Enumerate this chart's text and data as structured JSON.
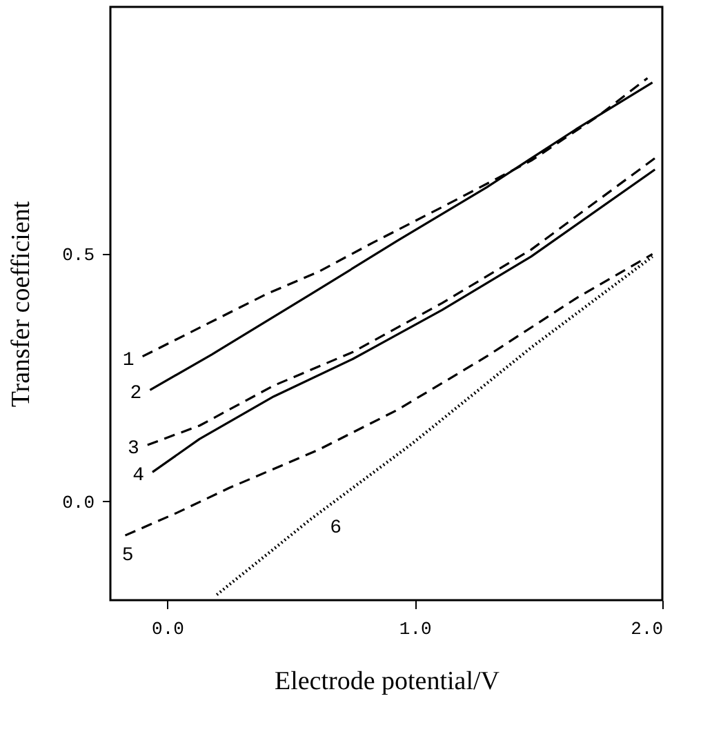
{
  "chart_data": {
    "type": "line",
    "xlabel": "Electrode potential/V",
    "ylabel": "Transfer coefficient",
    "xlim": [
      -0.23,
      2.0
    ],
    "ylim": [
      -0.2,
      1.0
    ],
    "xticks": [
      {
        "value": 0,
        "label": "0.0"
      },
      {
        "value": 1,
        "label": "1.0"
      },
      {
        "value": 2,
        "label": "2.0"
      }
    ],
    "yticks": [
      {
        "value": 0,
        "label": "0.0"
      },
      {
        "value": 0.5,
        "label": "0.5"
      }
    ],
    "grid": false,
    "marker": "none",
    "series": [
      {
        "name": "1",
        "color": "#000000",
        "line_style": "dashed",
        "x": [
          -0.1,
          0.4,
          0.61,
          0.83,
          1.11,
          1.47,
          1.74,
          1.94
        ],
        "values": [
          0.293,
          0.419,
          0.464,
          0.523,
          0.595,
          0.689,
          0.779,
          0.856
        ]
      },
      {
        "name": "2",
        "color": "#000000",
        "line_style": "solid",
        "x": [
          -0.07,
          0.18,
          0.58,
          0.93,
          1.29,
          1.65,
          1.96
        ],
        "values": [
          0.225,
          0.297,
          0.419,
          0.527,
          0.635,
          0.752,
          0.847
        ]
      },
      {
        "name": "3",
        "color": "#000000",
        "line_style": "dashed",
        "x": [
          -0.08,
          0.13,
          0.43,
          0.75,
          1.11,
          1.47,
          1.97
        ],
        "values": [
          0.114,
          0.153,
          0.234,
          0.302,
          0.401,
          0.509,
          0.694
        ]
      },
      {
        "name": "4",
        "color": "#000000",
        "line_style": "solid",
        "x": [
          -0.06,
          0.13,
          0.43,
          0.75,
          1.11,
          1.47,
          1.97
        ],
        "values": [
          0.059,
          0.126,
          0.212,
          0.288,
          0.387,
          0.495,
          0.671
        ]
      },
      {
        "name": "5",
        "color": "#000000",
        "line_style": "dashed",
        "x": [
          -0.17,
          0.04,
          0.25,
          0.61,
          0.93,
          1.29,
          1.65,
          1.96
        ],
        "values": [
          -0.069,
          -0.023,
          0.027,
          0.104,
          0.185,
          0.293,
          0.41,
          0.5
        ]
      },
      {
        "name": "6",
        "color": "#000000",
        "line_style": "dotted",
        "x": [
          0.2,
          0.58,
          0.99,
          1.47,
          1.96
        ],
        "values": [
          -0.189,
          -0.036,
          0.117,
          0.311,
          0.495
        ]
      }
    ]
  }
}
